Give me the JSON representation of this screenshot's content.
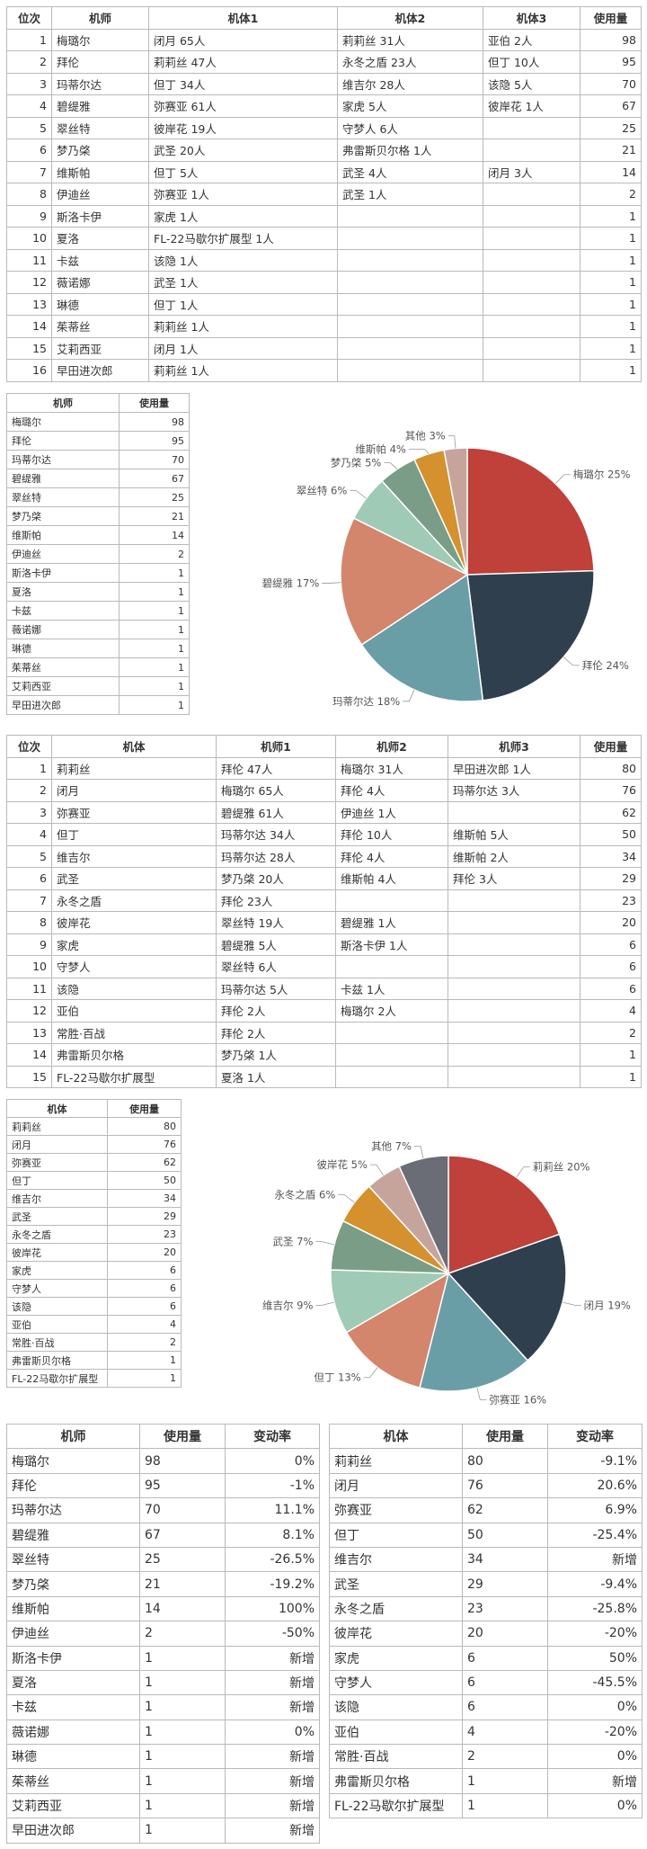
{
  "pilot_table": {
    "columns": [
      "位次",
      "机师",
      "机体1",
      "机体2",
      "机体3",
      "使用量"
    ],
    "rows": [
      [
        1,
        "梅璐尔",
        "闭月 65人",
        "莉莉丝 31人",
        "亚伯 2人",
        98
      ],
      [
        2,
        "拜伦",
        "莉莉丝 47人",
        "永冬之盾 23人",
        "但丁 10人",
        95
      ],
      [
        3,
        "玛蒂尔达",
        "但丁 34人",
        "维吉尔 28人",
        "该隐 5人",
        70
      ],
      [
        4,
        "碧缇雅",
        "弥赛亚 61人",
        "家虎 5人",
        "彼岸花 1人",
        67
      ],
      [
        5,
        "翠丝特",
        "彼岸花 19人",
        "守梦人 6人",
        null,
        25
      ],
      [
        6,
        "梦乃棨",
        "武圣 20人",
        "弗雷斯贝尔格 1人",
        null,
        21
      ],
      [
        7,
        "维斯帕",
        "但丁 5人",
        "武圣 4人",
        "闭月 3人",
        14
      ],
      [
        8,
        "伊迪丝",
        "弥赛亚 1人",
        "武圣 1人",
        null,
        2
      ],
      [
        9,
        "斯洛卡伊",
        "家虎 1人",
        null,
        null,
        1
      ],
      [
        10,
        "夏洛",
        "FL-22马歇尔扩展型 1人",
        null,
        null,
        1
      ],
      [
        11,
        "卡兹",
        "该隐 1人",
        null,
        null,
        1
      ],
      [
        12,
        "薇诺娜",
        "武圣 1人",
        null,
        null,
        1
      ],
      [
        13,
        "琳德",
        "但丁 1人",
        null,
        null,
        1
      ],
      [
        14,
        "茱蒂丝",
        "莉莉丝 1人",
        null,
        null,
        1
      ],
      [
        15,
        "艾莉西亚",
        "闭月 1人",
        null,
        null,
        1
      ],
      [
        16,
        "早田进次郎",
        "莉莉丝 1人",
        null,
        null,
        1
      ]
    ]
  },
  "pilot_usage_table": {
    "columns": [
      "机师",
      "使用量"
    ],
    "rows": [
      [
        "梅璐尔",
        98
      ],
      [
        "拜伦",
        95
      ],
      [
        "玛蒂尔达",
        70
      ],
      [
        "碧缇雅",
        67
      ],
      [
        "翠丝特",
        25
      ],
      [
        "梦乃棨",
        21
      ],
      [
        "维斯帕",
        14
      ],
      [
        "伊迪丝",
        2
      ],
      [
        "斯洛卡伊",
        1
      ],
      [
        "夏洛",
        1
      ],
      [
        "卡兹",
        1
      ],
      [
        "薇诺娜",
        1
      ],
      [
        "琳德",
        1
      ],
      [
        "茱蒂丝",
        1
      ],
      [
        "艾莉西亚",
        1
      ],
      [
        "早田进次郎",
        1
      ]
    ]
  },
  "mech_table": {
    "columns": [
      "位次",
      "机体",
      "机师1",
      "机师2",
      "机师3",
      "使用量"
    ],
    "rows": [
      [
        1,
        "莉莉丝",
        "拜伦 47人",
        "梅璐尔 31人",
        "早田进次郎 1人",
        80
      ],
      [
        2,
        "闭月",
        "梅璐尔 65人",
        "拜伦 4人",
        "玛蒂尔达 3人",
        76
      ],
      [
        3,
        "弥赛亚",
        "碧缇雅 61人",
        "伊迪丝 1人",
        null,
        62
      ],
      [
        4,
        "但丁",
        "玛蒂尔达 34人",
        "拜伦 10人",
        "维斯帕 5人",
        50
      ],
      [
        5,
        "维吉尔",
        "玛蒂尔达 28人",
        "拜伦 4人",
        "维斯帕 2人",
        34
      ],
      [
        6,
        "武圣",
        "梦乃棨 20人",
        "维斯帕 4人",
        "拜伦 3人",
        29
      ],
      [
        7,
        "永冬之盾",
        "拜伦 23人",
        null,
        null,
        23
      ],
      [
        8,
        "彼岸花",
        "翠丝特 19人",
        "碧缇雅 1人",
        null,
        20
      ],
      [
        9,
        "家虎",
        "碧缇雅 5人",
        "斯洛卡伊 1人",
        null,
        6
      ],
      [
        10,
        "守梦人",
        "翠丝特 6人",
        null,
        null,
        6
      ],
      [
        11,
        "该隐",
        "玛蒂尔达 5人",
        "卡兹 1人",
        null,
        6
      ],
      [
        12,
        "亚伯",
        "拜伦 2人",
        "梅璐尔 2人",
        null,
        4
      ],
      [
        13,
        "常胜·百战",
        "拜伦 2人",
        null,
        null,
        2
      ],
      [
        14,
        "弗雷斯贝尔格",
        "梦乃棨 1人",
        null,
        null,
        1
      ],
      [
        15,
        "FL-22马歇尔扩展型",
        "夏洛 1人",
        null,
        null,
        1
      ]
    ]
  },
  "mech_usage_table": {
    "columns": [
      "机体",
      "使用量"
    ],
    "rows": [
      [
        "莉莉丝",
        80
      ],
      [
        "闭月",
        76
      ],
      [
        "弥赛亚",
        62
      ],
      [
        "但丁",
        50
      ],
      [
        "维吉尔",
        34
      ],
      [
        "武圣",
        29
      ],
      [
        "永冬之盾",
        23
      ],
      [
        "彼岸花",
        20
      ],
      [
        "家虎",
        6
      ],
      [
        "守梦人",
        6
      ],
      [
        "该隐",
        6
      ],
      [
        "亚伯",
        4
      ],
      [
        "常胜·百战",
        2
      ],
      [
        "弗雷斯贝尔格",
        1
      ],
      [
        "FL-22马歇尔扩展型",
        1
      ]
    ]
  },
  "pilot_change_table": {
    "columns": [
      "机师",
      "使用量",
      "变动率"
    ],
    "rows": [
      [
        "梅璐尔",
        98,
        "0%"
      ],
      [
        "拜伦",
        95,
        "-1%"
      ],
      [
        "玛蒂尔达",
        70,
        "11.1%"
      ],
      [
        "碧缇雅",
        67,
        "8.1%"
      ],
      [
        "翠丝特",
        25,
        "-26.5%"
      ],
      [
        "梦乃棨",
        21,
        "-19.2%"
      ],
      [
        "维斯帕",
        14,
        "100%"
      ],
      [
        "伊迪丝",
        2,
        "-50%"
      ],
      [
        "斯洛卡伊",
        1,
        "新增"
      ],
      [
        "夏洛",
        1,
        "新增"
      ],
      [
        "卡兹",
        1,
        "新增"
      ],
      [
        "薇诺娜",
        1,
        "0%"
      ],
      [
        "琳德",
        1,
        "新增"
      ],
      [
        "茱蒂丝",
        1,
        "新增"
      ],
      [
        "艾莉西亚",
        1,
        "新增"
      ],
      [
        "早田进次郎",
        1,
        "新增"
      ]
    ]
  },
  "mech_change_table": {
    "columns": [
      "机体",
      "使用量",
      "变动率"
    ],
    "rows": [
      [
        "莉莉丝",
        80,
        "-9.1%"
      ],
      [
        "闭月",
        76,
        "20.6%"
      ],
      [
        "弥赛亚",
        62,
        "6.9%"
      ],
      [
        "但丁",
        50,
        "-25.4%"
      ],
      [
        "维吉尔",
        34,
        "新增"
      ],
      [
        "武圣",
        29,
        "-9.4%"
      ],
      [
        "永冬之盾",
        23,
        "-25.8%"
      ],
      [
        "彼岸花",
        20,
        "-20%"
      ],
      [
        "家虎",
        6,
        "50%"
      ],
      [
        "守梦人",
        6,
        "-45.5%"
      ],
      [
        "该隐",
        6,
        "0%"
      ],
      [
        "亚伯",
        4,
        "-20%"
      ],
      [
        "常胜·百战",
        2,
        "0%"
      ],
      [
        "弗雷斯贝尔格",
        1,
        "新增"
      ],
      [
        "FL-22马歇尔扩展型",
        1,
        "0%"
      ]
    ]
  },
  "chart_data": [
    {
      "type": "pie",
      "categories": [
        "梅璐尔",
        "拜伦",
        "玛蒂尔达",
        "碧缇雅",
        "翠丝特",
        "梦乃棨",
        "维斯帕",
        "其他"
      ],
      "values": [
        25,
        24,
        18,
        17,
        6,
        5,
        4,
        3
      ],
      "value_labels": [
        "25%",
        "24%",
        "18%",
        "17%",
        "6%",
        "5%",
        "4%",
        "3%"
      ],
      "colors": [
        "#bf4139",
        "#2f3f4d",
        "#6a9ea7",
        "#d3866c",
        "#9fcab6",
        "#7a9d88",
        "#d4912e",
        "#c7a49b"
      ]
    },
    {
      "type": "pie",
      "categories": [
        "莉莉丝",
        "闭月",
        "弥赛亚",
        "但丁",
        "维吉尔",
        "武圣",
        "永冬之盾",
        "彼岸花",
        "其他"
      ],
      "values": [
        20,
        19,
        16,
        13,
        9,
        7,
        6,
        5,
        7
      ],
      "value_labels": [
        "20%",
        "19%",
        "16%",
        "13%",
        "9%",
        "7%",
        "6%",
        "5%",
        "7%"
      ],
      "colors": [
        "#bf4139",
        "#2f3f4d",
        "#6a9ea7",
        "#d3866c",
        "#9fcab6",
        "#7a9d88",
        "#d4912e",
        "#c7a49b",
        "#6b6d76"
      ]
    }
  ]
}
